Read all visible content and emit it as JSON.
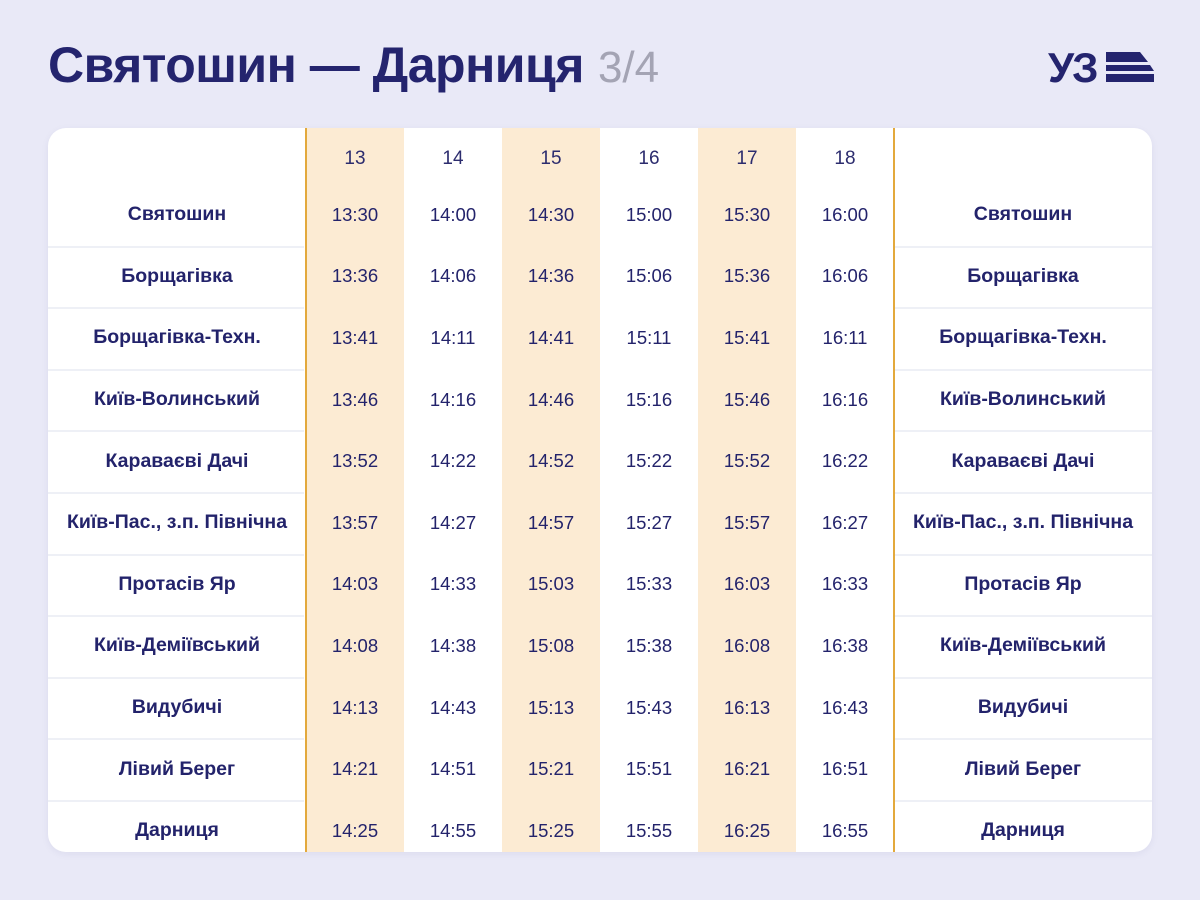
{
  "header": {
    "title": "Святошин — Дарниця",
    "page_indicator": "3/4",
    "logo_text": "УЗ"
  },
  "colors": {
    "background": "#e9e9f7",
    "navy": "#24246e",
    "highlight_band": "#fcebd3",
    "divider_orange": "#e3a93c"
  },
  "timetable": {
    "train_numbers": [
      "13",
      "14",
      "15",
      "16",
      "17",
      "18"
    ],
    "rows": [
      {
        "station": "Святошин",
        "times": [
          "13:30",
          "14:00",
          "14:30",
          "15:00",
          "15:30",
          "16:00"
        ]
      },
      {
        "station": "Борщагівка",
        "times": [
          "13:36",
          "14:06",
          "14:36",
          "15:06",
          "15:36",
          "16:06"
        ]
      },
      {
        "station": "Борщагівка-Техн.",
        "times": [
          "13:41",
          "14:11",
          "14:41",
          "15:11",
          "15:41",
          "16:11"
        ]
      },
      {
        "station": "Київ-Волинський",
        "times": [
          "13:46",
          "14:16",
          "14:46",
          "15:16",
          "15:46",
          "16:16"
        ]
      },
      {
        "station": "Караваєві Дачі",
        "times": [
          "13:52",
          "14:22",
          "14:52",
          "15:22",
          "15:52",
          "16:22"
        ]
      },
      {
        "station": "Київ-Пас., з.п. Північна",
        "times": [
          "13:57",
          "14:27",
          "14:57",
          "15:27",
          "15:57",
          "16:27"
        ]
      },
      {
        "station": "Протасів Яр",
        "times": [
          "14:03",
          "14:33",
          "15:03",
          "15:33",
          "16:03",
          "16:33"
        ]
      },
      {
        "station": "Київ-Деміївський",
        "times": [
          "14:08",
          "14:38",
          "15:08",
          "15:38",
          "16:08",
          "16:38"
        ]
      },
      {
        "station": "Видубичі",
        "times": [
          "14:13",
          "14:43",
          "15:13",
          "15:43",
          "16:13",
          "16:43"
        ]
      },
      {
        "station": "Лівий Берег",
        "times": [
          "14:21",
          "14:51",
          "15:21",
          "15:51",
          "16:21",
          "16:51"
        ]
      },
      {
        "station": "Дарниця",
        "times": [
          "14:25",
          "14:55",
          "15:25",
          "15:55",
          "16:25",
          "16:55"
        ]
      }
    ]
  }
}
